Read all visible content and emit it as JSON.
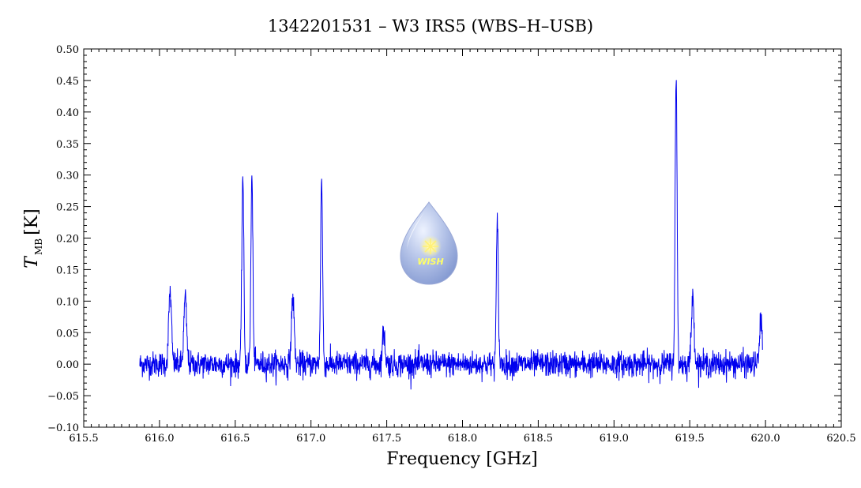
{
  "chart_data": {
    "type": "line",
    "title": "1342201531 – W3 IRS5 (WBS–H–USB)",
    "xlabel": "Frequency [GHz]",
    "ylabel_main": "T",
    "ylabel_sub": "MB",
    "ylabel_unit": "[K]",
    "xlim": [
      615.5,
      620.5
    ],
    "ylim": [
      -0.1,
      0.5
    ],
    "x_ticks": [
      615.5,
      616.0,
      616.5,
      617.0,
      617.5,
      618.0,
      618.5,
      619.0,
      619.5,
      620.0,
      620.5
    ],
    "x_tick_labels": [
      "615.5",
      "616.0",
      "616.5",
      "617.0",
      "617.5",
      "618.0",
      "618.5",
      "619.0",
      "619.5",
      "620.0",
      "620.5"
    ],
    "y_ticks": [
      -0.1,
      -0.05,
      0.0,
      0.05,
      0.1,
      0.15,
      0.2,
      0.25,
      0.3,
      0.35,
      0.4,
      0.45,
      0.5
    ],
    "y_tick_labels": [
      "−0.10",
      "−0.05",
      "0.00",
      "0.05",
      "0.10",
      "0.15",
      "0.20",
      "0.25",
      "0.30",
      "0.35",
      "0.40",
      "0.45",
      "0.50"
    ],
    "grid": false,
    "series": [
      {
        "color": "#0000ee",
        "x_range": [
          615.87,
          619.98
        ],
        "noise_rms": 0.01,
        "baseline": 0.0,
        "peaks": [
          {
            "x": 616.07,
            "y": 0.115
          },
          {
            "x": 616.17,
            "y": 0.105
          },
          {
            "x": 616.55,
            "y": 0.3
          },
          {
            "x": 616.61,
            "y": 0.295
          },
          {
            "x": 616.88,
            "y": 0.105
          },
          {
            "x": 617.07,
            "y": 0.295
          },
          {
            "x": 617.48,
            "y": 0.05
          },
          {
            "x": 618.23,
            "y": 0.225
          },
          {
            "x": 619.41,
            "y": 0.45
          },
          {
            "x": 619.52,
            "y": 0.105
          },
          {
            "x": 619.97,
            "y": 0.07
          }
        ]
      }
    ]
  },
  "logo": {
    "icon": "wish-drop-logo",
    "text": "WISH"
  }
}
